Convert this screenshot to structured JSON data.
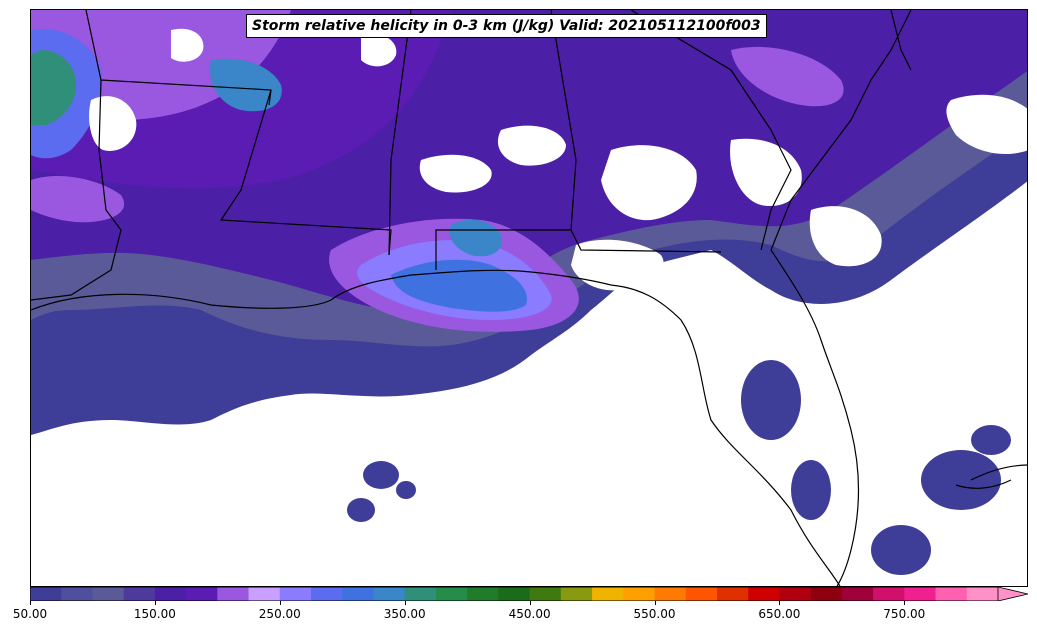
{
  "title": "Storm relative helicity in 0-3 km (J/kg) Valid: 202105112100f003",
  "colorbar": {
    "min": 50,
    "max": 825,
    "step": 25,
    "extend": "max",
    "tick_labels": [
      "50.00",
      "150.00",
      "250.00",
      "350.00",
      "450.00",
      "550.00",
      "650.00",
      "750.00"
    ],
    "tick_values": [
      50,
      150,
      250,
      350,
      450,
      550,
      650,
      750
    ],
    "colors": [
      "#3e3e99",
      "#4f4f9e",
      "#5a5a98",
      "#4e3a9c",
      "#4b1fa6",
      "#5a1cb3",
      "#9a58e0",
      "#c9a0ff",
      "#8a7bff",
      "#5b6cf0",
      "#3f72e0",
      "#3a86c8",
      "#2f8f79",
      "#268c4a",
      "#207c2b",
      "#1a6b1a",
      "#3f7a10",
      "#8a9a10",
      "#f0b400",
      "#ffa000",
      "#ff7a00",
      "#ff5500",
      "#e03000",
      "#d00000",
      "#b00010",
      "#8e0010",
      "#a0003a",
      "#d0106a",
      "#f02090",
      "#ff60b0",
      "#ff90c8"
    ],
    "extend_color": "#ff90c8"
  },
  "map": {
    "region": "Southeastern United States",
    "legend_placement": "bottom"
  }
}
